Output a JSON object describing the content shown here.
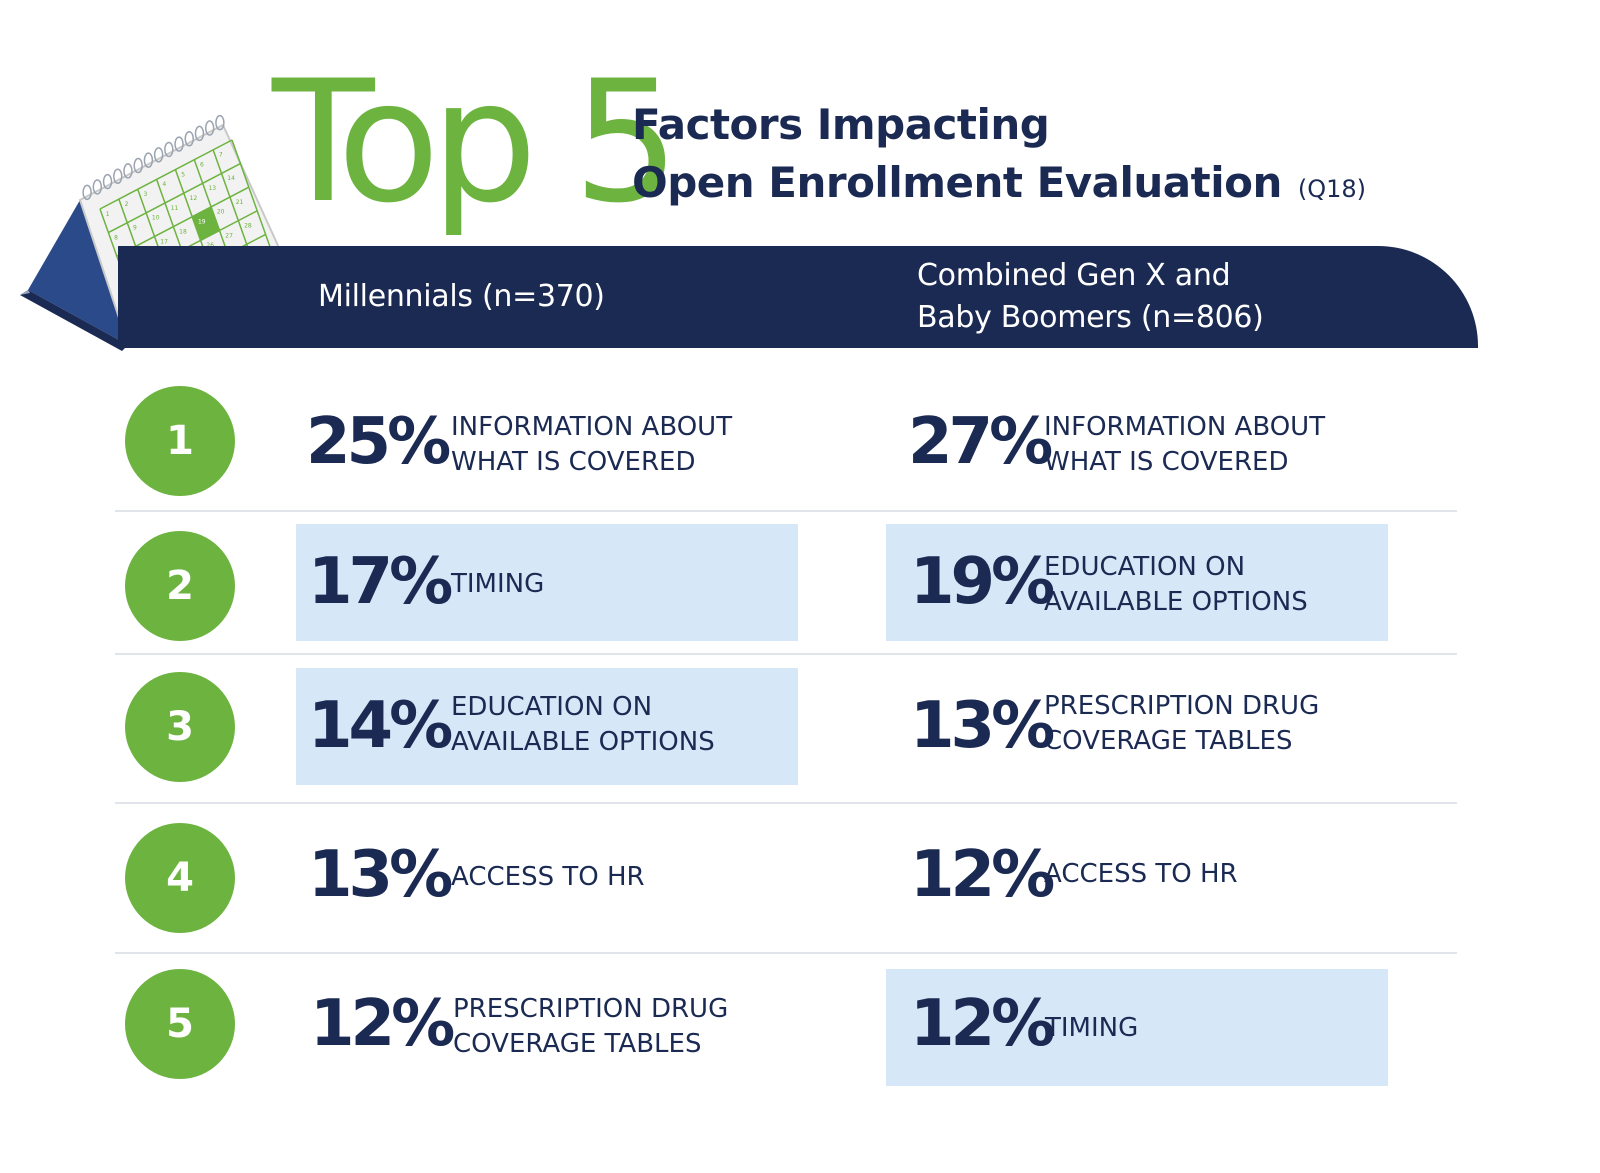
{
  "title": {
    "big": "Top 5",
    "line1": "Factors Impacting",
    "line2": "Open Enrollment Evaluation",
    "question_code": "(Q18)"
  },
  "calendar": {
    "icon": "desk-calendar-icon",
    "highlighted_day": "19",
    "days": [
      "1",
      "2",
      "3",
      "4",
      "5",
      "6",
      "7",
      "8",
      "9",
      "10",
      "11",
      "12",
      "13",
      "14",
      "15",
      "16",
      "17",
      "18",
      "19",
      "20",
      "21",
      "22",
      "23",
      "24",
      "25",
      "26",
      "27",
      "28",
      "29",
      "30",
      "31"
    ]
  },
  "columns": {
    "left": {
      "line1": "Millennials (n=370)",
      "line2": ""
    },
    "right": {
      "line1": "Combined Gen X and",
      "line2": "Baby Boomers (n=806)"
    }
  },
  "colors": {
    "navy": "#1b2a52",
    "green": "#6db33f",
    "highlight": "#d6e7f7"
  },
  "rows": [
    {
      "rank": "1",
      "left": {
        "pct": "25%",
        "line1": "INFORMATION ABOUT",
        "line2": "WHAT IS COVERED",
        "highlighted": false
      },
      "right": {
        "pct": "27%",
        "line1": "INFORMATION ABOUT",
        "line2": "WHAT IS COVERED",
        "highlighted": false
      }
    },
    {
      "rank": "2",
      "left": {
        "pct": "17%",
        "line1": "TIMING",
        "line2": "",
        "highlighted": true
      },
      "right": {
        "pct": "19%",
        "line1": "EDUCATION ON",
        "line2": "AVAILABLE OPTIONS",
        "highlighted": true
      }
    },
    {
      "rank": "3",
      "left": {
        "pct": "14%",
        "line1": "EDUCATION ON",
        "line2": "AVAILABLE OPTIONS",
        "highlighted": true
      },
      "right": {
        "pct": "13%",
        "line1": "PRESCRIPTION DRUG",
        "line2": "COVERAGE TABLES",
        "highlighted": false
      }
    },
    {
      "rank": "4",
      "left": {
        "pct": "13%",
        "line1": "ACCESS TO HR",
        "line2": "",
        "highlighted": false
      },
      "right": {
        "pct": "12%",
        "line1": "ACCESS TO HR",
        "line2": "",
        "highlighted": false
      }
    },
    {
      "rank": "5",
      "left": {
        "pct": "12%",
        "line1": "PRESCRIPTION DRUG",
        "line2": "COVERAGE TABLES",
        "highlighted": false
      },
      "right": {
        "pct": "12%",
        "line1": "TIMING",
        "line2": "",
        "highlighted": true
      }
    }
  ]
}
